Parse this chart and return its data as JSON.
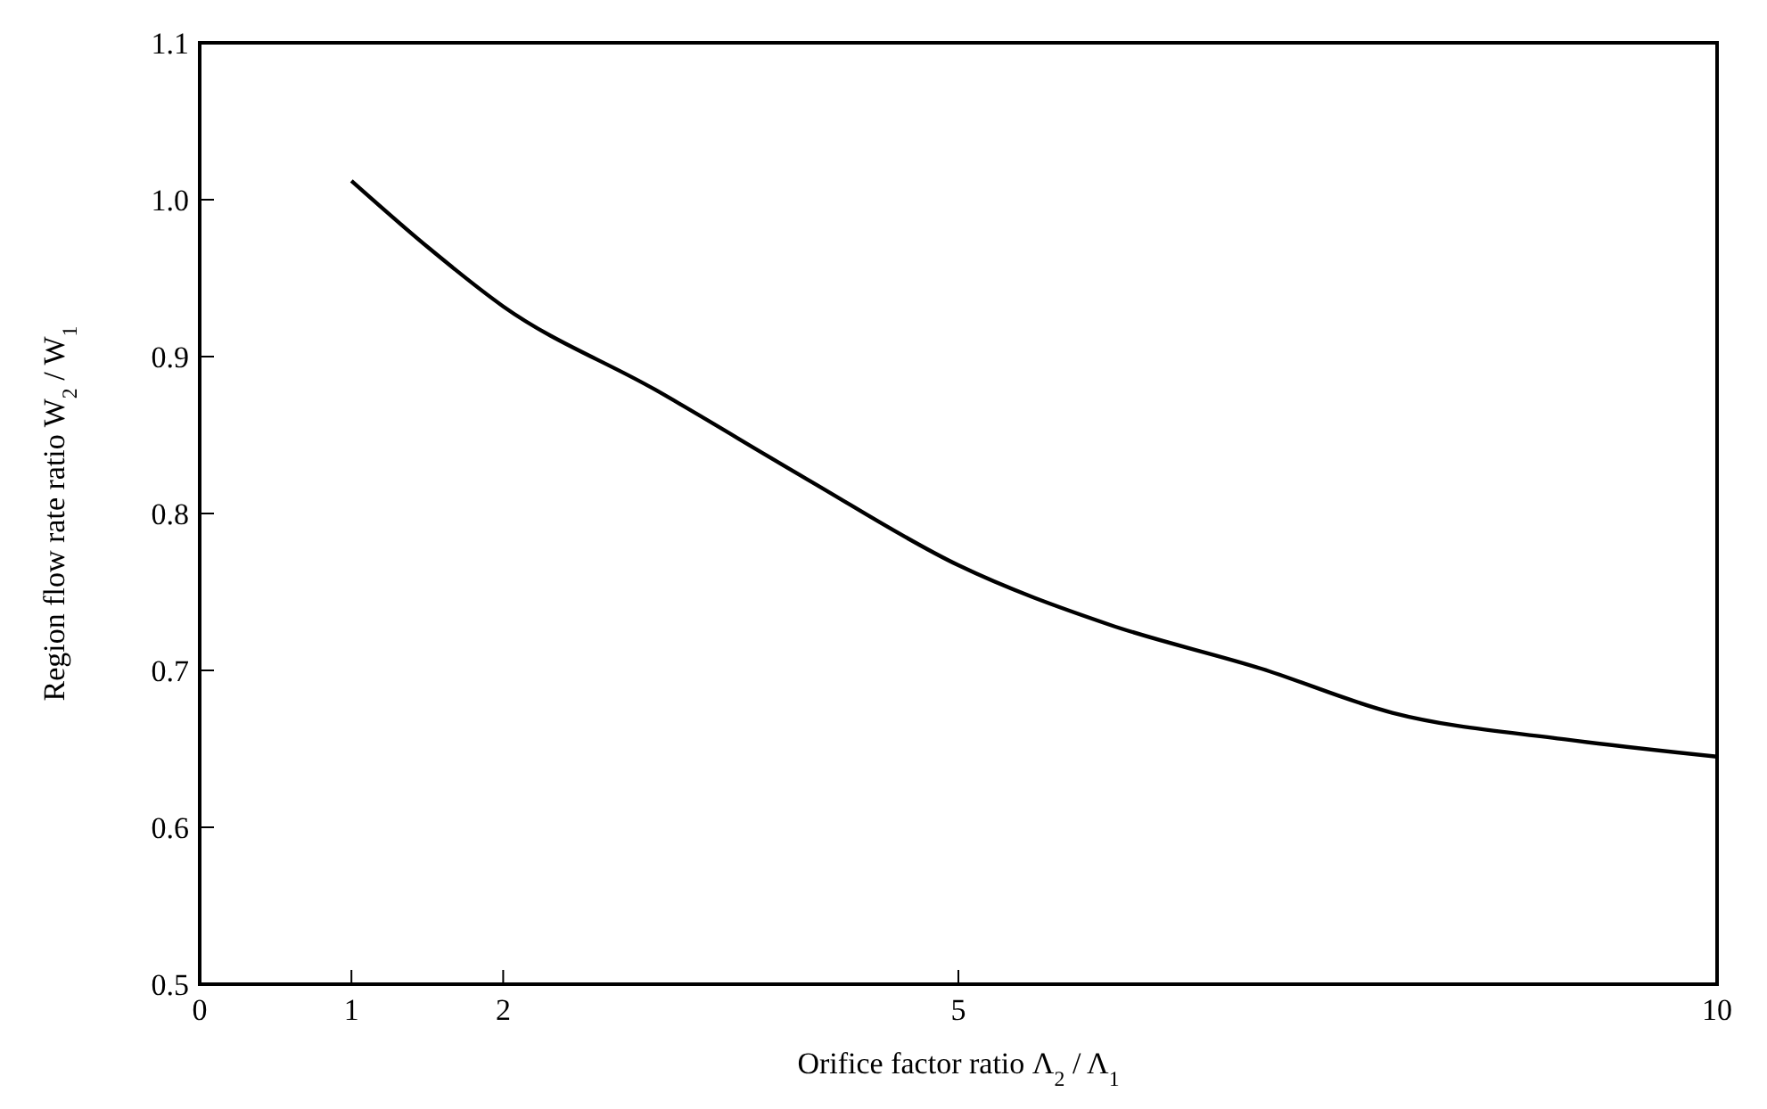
{
  "chart_data": {
    "type": "line",
    "xlabel": "Orifice factor ratio Λ$_{2}$ / Λ$_{1}$",
    "ylabel": "Region flow rate ratio  W$_{2}$ / W$_{1}$",
    "xlim": [
      0,
      10
    ],
    "xticks": [
      0,
      1,
      2,
      5,
      10
    ],
    "ylim": [
      0.5,
      1.1
    ],
    "yticks": [
      0.5,
      0.6,
      0.7,
      0.8,
      0.9,
      {
        "value": 1.0,
        "label": "1.0"
      },
      1.1
    ],
    "series": [
      {
        "color": "#000000",
        "x": [
          1,
          1.5,
          2,
          3,
          4,
          5,
          6,
          7,
          7.86,
          9,
          10
        ],
        "values": [
          1.012,
          0.97,
          0.932,
          0.879,
          0.822,
          0.767,
          0.729,
          0.701,
          0.673,
          0.656,
          0.645
        ]
      }
    ],
    "grid": false,
    "marker": "none",
    "line_style": "solid"
  }
}
